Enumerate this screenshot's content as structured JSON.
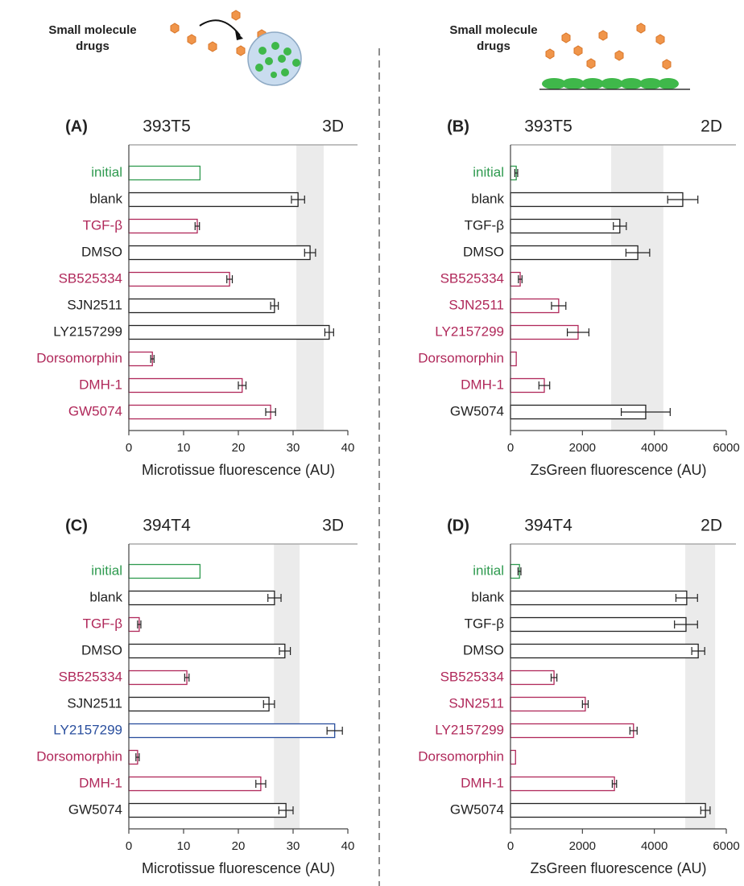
{
  "illustrations": {
    "left_label": [
      "Small molecule",
      "drugs"
    ],
    "right_label": [
      "Small molecule",
      "drugs"
    ]
  },
  "chart_data": [
    {
      "type": "barh",
      "panel": "(A)",
      "title": "393T5",
      "subtitle": "3D",
      "xlabel": "Microtissue fluorescence (AU)",
      "categories": [
        "initial",
        "blank",
        "TGF-β",
        "DMSO",
        "SB525334",
        "SJN2511",
        "LY2157299",
        "Dorsomorphin",
        "DMH-1",
        "GW5074"
      ],
      "values": [
        13,
        30.9,
        12.5,
        33.1,
        18.4,
        26.6,
        36.6,
        4.3,
        20.7,
        25.9
      ],
      "errors": [
        null,
        1.2,
        0.4,
        1,
        0.5,
        0.7,
        0.8,
        0.3,
        0.7,
        0.9
      ],
      "colors": [
        "#2e9a4f",
        "#222222",
        "#b0285a",
        "#222222",
        "#b0285a",
        "#222222",
        "#222222",
        "#b0285a",
        "#b0285a",
        "#b0285a"
      ],
      "shaded_range": [
        30.6,
        35.6
      ],
      "xlim": [
        0,
        40
      ],
      "xticks": [
        0,
        10,
        20,
        30,
        40
      ]
    },
    {
      "type": "barh",
      "panel": "(B)",
      "title": "393T5",
      "subtitle": "2D",
      "xlabel": "ZsGreen fluorescence (AU)",
      "categories": [
        "initial",
        "blank",
        "TGF-β",
        "DMSO",
        "SB525334",
        "SJN2511",
        "LY2157299",
        "Dorsomorphin",
        "DMH-1",
        "GW5074"
      ],
      "values": [
        160,
        4790,
        3040,
        3540,
        270,
        1340,
        1880,
        160,
        940,
        3760
      ],
      "errors": [
        40,
        420,
        180,
        330,
        50,
        200,
        300,
        null,
        150,
        680
      ],
      "colors": [
        "#2e9a4f",
        "#222222",
        "#222222",
        "#222222",
        "#b0285a",
        "#b0285a",
        "#b0285a",
        "#b0285a",
        "#b0285a",
        "#222222"
      ],
      "shaded_range": [
        2800,
        4250
      ],
      "xlim": [
        0,
        6000
      ],
      "xticks": [
        0,
        2000,
        4000,
        6000
      ]
    },
    {
      "type": "barh",
      "panel": "(C)",
      "title": "394T4",
      "subtitle": "3D",
      "xlabel": "Microtissue fluorescence (AU)",
      "categories": [
        "initial",
        "blank",
        "TGF-β",
        "DMSO",
        "SB525334",
        "SJN2511",
        "LY2157299",
        "Dorsomorphin",
        "DMH-1",
        "GW5074"
      ],
      "values": [
        13,
        26.6,
        1.9,
        28.5,
        10.6,
        25.6,
        37.6,
        1.6,
        24.1,
        28.7
      ],
      "errors": [
        null,
        1.2,
        0.3,
        1,
        0.4,
        1,
        1.4,
        0.3,
        0.9,
        1.3
      ],
      "colors": [
        "#2e9a4f",
        "#222222",
        "#b0285a",
        "#222222",
        "#b0285a",
        "#222222",
        "#2a4f9e",
        "#b0285a",
        "#b0285a",
        "#222222"
      ],
      "shaded_range": [
        26.5,
        31.2
      ],
      "xlim": [
        0,
        40
      ],
      "xticks": [
        0,
        10,
        20,
        30,
        40
      ]
    },
    {
      "type": "barh",
      "panel": "(D)",
      "title": "394T4",
      "subtitle": "2D",
      "xlabel": "ZsGreen fluorescence (AU)",
      "categories": [
        "initial",
        "blank",
        "TGF-β",
        "DMSO",
        "SB525334",
        "SJN2511",
        "LY2157299",
        "Dorsomorphin",
        "DMH-1",
        "GW5074"
      ],
      "values": [
        250,
        4900,
        4880,
        5220,
        1210,
        2080,
        3420,
        140,
        2890,
        5420
      ],
      "errors": [
        40,
        300,
        320,
        180,
        80,
        80,
        100,
        null,
        60,
        130
      ],
      "colors": [
        "#2e9a4f",
        "#222222",
        "#222222",
        "#222222",
        "#b0285a",
        "#b0285a",
        "#b0285a",
        "#b0285a",
        "#b0285a",
        "#222222"
      ],
      "shaded_range": [
        4860,
        5690
      ],
      "xlim": [
        0,
        6000
      ],
      "xticks": [
        0,
        2000,
        4000,
        6000
      ]
    }
  ]
}
